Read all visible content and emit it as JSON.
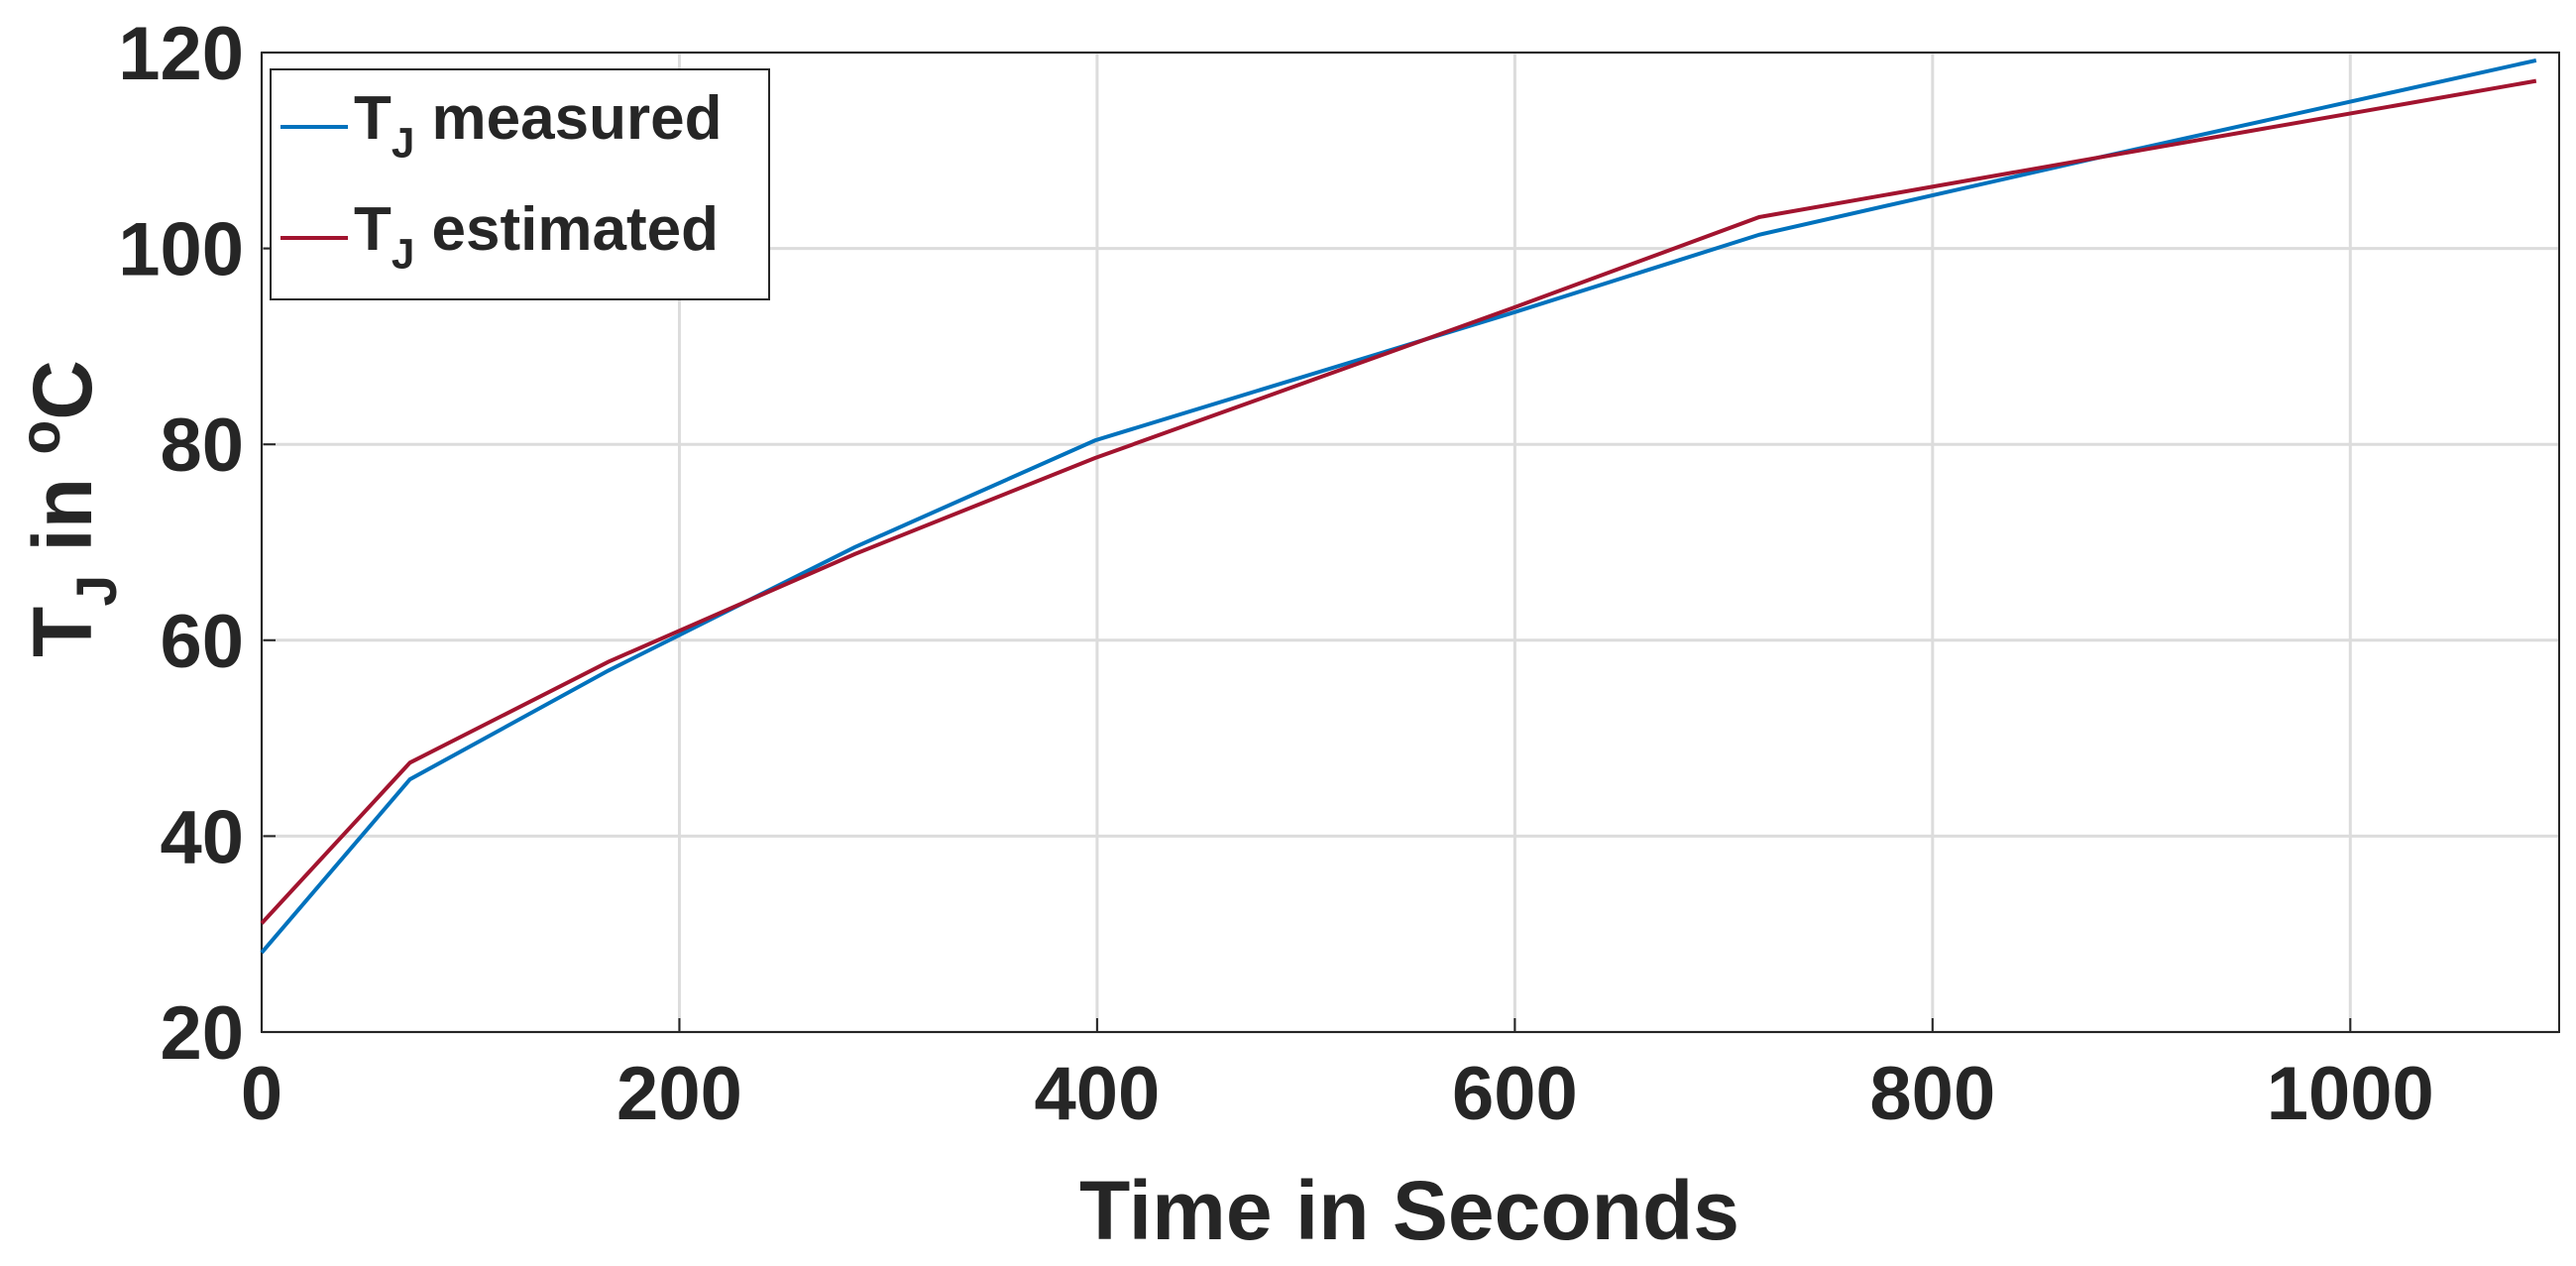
{
  "chart_data": {
    "type": "line",
    "xlabel": "Time in Seconds",
    "ylabel": "T_J in ^oC",
    "xlim": [
      0,
      1100
    ],
    "xticks": [
      0,
      200,
      400,
      600,
      800,
      1000
    ],
    "ylim": [
      20,
      120
    ],
    "yticks": [
      20,
      40,
      60,
      80,
      100,
      120
    ],
    "grid": true,
    "legend": "upper left",
    "series": [
      {
        "name": "T_J measured",
        "color": "#0072bd",
        "x": [
          0,
          71,
          166,
          284,
          399,
          600,
          717,
          880,
          1089
        ],
        "values": [
          28.1,
          45.8,
          56.9,
          69.5,
          80.4,
          93.5,
          101.4,
          109.3,
          119.2
        ]
      },
      {
        "name": "T_J estimated",
        "color": "#a2142f",
        "x": [
          0,
          71,
          166,
          284,
          399,
          600,
          717,
          880,
          1089
        ],
        "values": [
          31.1,
          47.5,
          57.8,
          68.8,
          78.6,
          94,
          103.2,
          109.3,
          117.1
        ]
      }
    ]
  }
}
